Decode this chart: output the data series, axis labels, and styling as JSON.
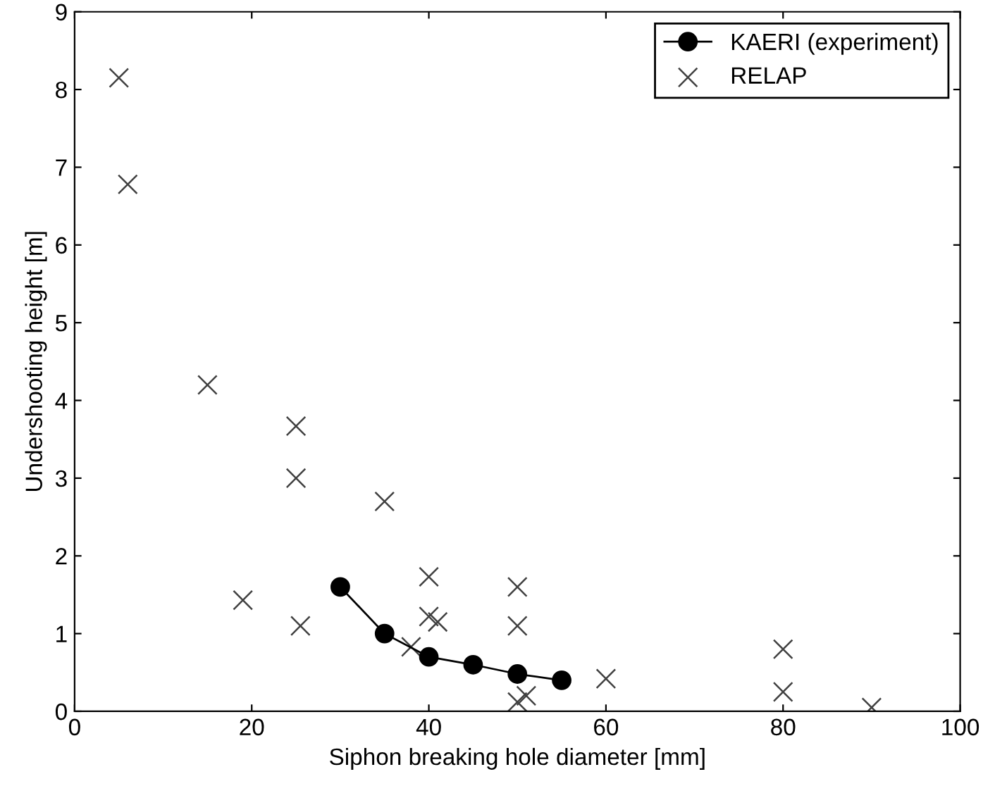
{
  "chart_data": {
    "type": "scatter",
    "xlabel": "Siphon breaking hole diameter [mm]",
    "ylabel": "Undershooting height [m]",
    "xlim": [
      0,
      100
    ],
    "xticks": [
      0,
      20,
      40,
      60,
      80,
      100
    ],
    "ylim": [
      0,
      9
    ],
    "yticks": [
      0,
      1,
      2,
      3,
      4,
      5,
      6,
      7,
      8,
      9
    ],
    "grid": false,
    "legend": "top right",
    "series": [
      {
        "name": "KAERI (experiment)",
        "type": "line",
        "marker": "circle",
        "line_style": "solid",
        "color": "#000000",
        "x": [
          30,
          35,
          40,
          45,
          50,
          55
        ],
        "values": [
          1.6,
          1.0,
          0.7,
          0.6,
          0.48,
          0.4
        ]
      },
      {
        "name": "RELAP",
        "marker": "cross",
        "color": "#404040",
        "x": [
          5,
          6,
          15,
          25,
          25,
          35,
          19,
          25.5,
          40,
          40,
          41,
          38,
          50,
          50,
          50,
          51,
          60,
          80,
          80,
          90
        ],
        "values": [
          8.15,
          6.78,
          4.2,
          3.67,
          3.0,
          2.7,
          1.43,
          1.1,
          1.73,
          1.22,
          1.15,
          0.83,
          1.6,
          1.1,
          0.12,
          0.2,
          0.42,
          0.8,
          0.25,
          0.05
        ]
      }
    ]
  }
}
